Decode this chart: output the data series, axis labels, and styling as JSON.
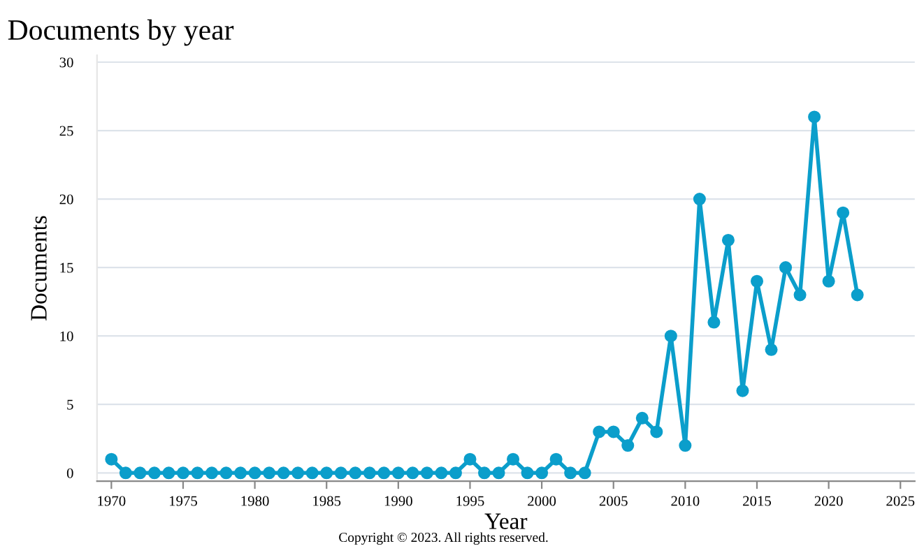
{
  "chart_data": {
    "type": "line",
    "title": "Documents by year",
    "xlabel": "Year",
    "ylabel": "Documents",
    "annotations": [
      "Copyright © 2023. All rights reserved."
    ],
    "x": [
      1970,
      1971,
      1972,
      1973,
      1974,
      1975,
      1976,
      1977,
      1978,
      1979,
      1980,
      1981,
      1982,
      1983,
      1984,
      1985,
      1986,
      1987,
      1988,
      1989,
      1990,
      1991,
      1992,
      1993,
      1994,
      1995,
      1996,
      1997,
      1998,
      1999,
      2000,
      2001,
      2002,
      2003,
      2004,
      2005,
      2006,
      2007,
      2008,
      2009,
      2010,
      2011,
      2012,
      2013,
      2014,
      2015,
      2016,
      2017,
      2018,
      2019,
      2020,
      2021,
      2022
    ],
    "series": [
      {
        "color": "#0b9ecb",
        "values": [
          1,
          0,
          0,
          0,
          0,
          0,
          0,
          0,
          0,
          0,
          0,
          0,
          0,
          0,
          0,
          0,
          0,
          0,
          0,
          0,
          0,
          0,
          0,
          0,
          0,
          1,
          0,
          0,
          1,
          0,
          0,
          1,
          0,
          0,
          3,
          3,
          2,
          4,
          3,
          10,
          2,
          20,
          11,
          17,
          6,
          14,
          9,
          15,
          13,
          26,
          14,
          19,
          13
        ]
      }
    ],
    "xlim": [
      1969,
      2026
    ],
    "xticks": [
      1970,
      1975,
      1980,
      1985,
      1990,
      1995,
      2000,
      2005,
      2010,
      2015,
      2020,
      2025
    ],
    "ylim": [
      -0.6,
      30.5
    ],
    "yticks": [
      0,
      5,
      10,
      15,
      20,
      25,
      30
    ],
    "grid": "y",
    "marker": "circle",
    "line_style": "solid",
    "legend": false
  }
}
